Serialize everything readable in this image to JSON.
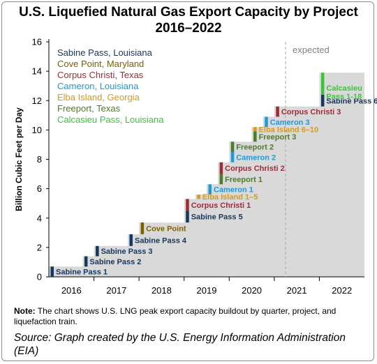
{
  "title": {
    "line1": "U.S. Liquefied Natural Gas Export Capacity by Project",
    "line2": "2016–2022"
  },
  "note": {
    "label": "Note:",
    "text": " The chart shows U.S. LNG peak export capacity buildout by quarter, project, and liquefaction train."
  },
  "source": "Source: Graph created by the U.S. Energy Information Administration (EIA)",
  "chart_data": {
    "type": "area",
    "ylabel": "Billion Cubic Feet per Day",
    "xlabel": "",
    "ylim": [
      0,
      16
    ],
    "yticks": [
      0,
      2,
      4,
      6,
      8,
      10,
      12,
      14,
      16
    ],
    "x_ticks": [
      "2016",
      "2017",
      "2018",
      "2019",
      "2020",
      "2021",
      "2022"
    ],
    "grid": false,
    "legend_position": "top-left",
    "expected_label": "expected",
    "expected_from": "2021-Q2",
    "colors": {
      "area": "#d9d9d9",
      "expected_divider": "#a6a6a6",
      "expected_text": "#808080",
      "axis": "#000000"
    },
    "projects": [
      {
        "name": "Sabine Pass, Louisiana",
        "color": "#17375e"
      },
      {
        "name": "Cove Point, Maryland",
        "color": "#7f6000"
      },
      {
        "name": "Corpus Christi, Texas",
        "color": "#a02b38"
      },
      {
        "name": "Cameron, Louisiana",
        "color": "#1d9bd7"
      },
      {
        "name": "Elba Island, Georgia",
        "color": "#d69a1e"
      },
      {
        "name": "Freeport, Texas",
        "color": "#4e7d2a"
      },
      {
        "name": "Calcasieu Pass, Louisiana",
        "color": "#3cc43c"
      }
    ],
    "additions": [
      {
        "quarter": "2016-Q1",
        "project": "Sabine Pass, Louisiana",
        "label": "Sabine Pass 1",
        "from": 0.0,
        "to": 0.7
      },
      {
        "quarter": "2016-Q4",
        "project": "Sabine Pass, Louisiana",
        "label": "Sabine Pass 2",
        "from": 0.7,
        "to": 1.4
      },
      {
        "quarter": "2017-Q1",
        "project": "Sabine Pass, Louisiana",
        "label": "Sabine Pass 3",
        "from": 1.4,
        "to": 2.1
      },
      {
        "quarter": "2017-Q4",
        "project": "Sabine Pass, Louisiana",
        "label": "Sabine Pass 4",
        "from": 2.1,
        "to": 2.9
      },
      {
        "quarter": "2018-Q1",
        "project": "Cove Point, Maryland",
        "label": "Cove Point",
        "from": 2.9,
        "to": 3.7
      },
      {
        "quarter": "2019-Q1",
        "project": "Sabine Pass, Louisiana",
        "label": "Sabine Pass 5",
        "from": 3.7,
        "to": 4.5
      },
      {
        "quarter": "2019-Q1",
        "project": "Corpus Christi, Texas",
        "label": "Corpus Christi 1",
        "from": 4.5,
        "to": 5.3
      },
      {
        "quarter": "2019-Q2",
        "project": "Elba Island, Georgia",
        "label": "Elba Island 1–5",
        "from": 5.3,
        "to": 5.6
      },
      {
        "quarter": "2019-Q3",
        "project": "Cameron, Louisiana",
        "label": "Cameron 1",
        "from": 5.6,
        "to": 6.3
      },
      {
        "quarter": "2019-Q4",
        "project": "Freeport, Texas",
        "label": "Freeport 1",
        "from": 6.3,
        "to": 7.0
      },
      {
        "quarter": "2019-Q4",
        "project": "Corpus Christi, Texas",
        "label": "Corpus Christi 2",
        "from": 7.0,
        "to": 7.8
      },
      {
        "quarter": "2020-Q1",
        "project": "Cameron, Louisiana",
        "label": "Cameron 2",
        "from": 7.8,
        "to": 8.5
      },
      {
        "quarter": "2020-Q1",
        "project": "Freeport, Texas",
        "label": "Freeport 2",
        "from": 8.5,
        "to": 9.2
      },
      {
        "quarter": "2020-Q3",
        "project": "Freeport, Texas",
        "label": "Freeport 3",
        "from": 9.2,
        "to": 9.9
      },
      {
        "quarter": "2020-Q3",
        "project": "Elba Island, Georgia",
        "label": "Elba Island 6–10",
        "from": 9.9,
        "to": 10.2
      },
      {
        "quarter": "2020-Q4",
        "project": "Cameron, Louisiana",
        "label": "Cameron 3",
        "from": 10.2,
        "to": 10.9
      },
      {
        "quarter": "2021-Q1",
        "project": "Corpus Christi, Texas",
        "label": "Corpus Christi 3",
        "from": 10.9,
        "to": 11.6
      },
      {
        "quarter": "2022-Q1",
        "project": "Sabine Pass, Louisiana",
        "label": "Sabine Pass 6",
        "from": 11.6,
        "to": 12.4
      },
      {
        "quarter": "2022-Q1",
        "project": "Calcasieu Pass, Louisiana",
        "label": "Calcasieu Pass 1-18",
        "from": 12.4,
        "to": 13.9
      }
    ]
  }
}
